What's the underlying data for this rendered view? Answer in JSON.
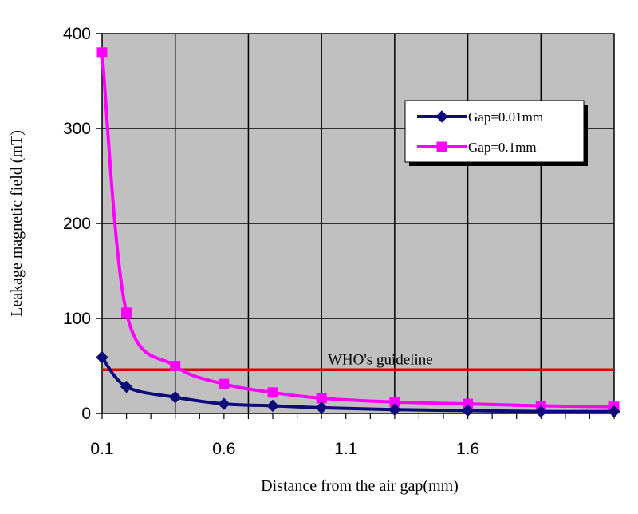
{
  "chart_data": {
    "type": "line",
    "xlabel": "Distance from the air gap(mm)",
    "ylabel": "Leakage magnetic field (mT)",
    "xlim": [
      0.1,
      2.2
    ],
    "ylim": [
      0,
      400
    ],
    "xticks": [
      0.1,
      0.6,
      1.1,
      1.6
    ],
    "xtick_labels": [
      "0.1",
      "0.6",
      "1.1",
      "1.6"
    ],
    "yticks": [
      0,
      100,
      200,
      300,
      400
    ],
    "ytick_labels": [
      "0",
      "100",
      "200",
      "300",
      "400"
    ],
    "grid": true,
    "plot_background": "#c0c0c0",
    "legend_position": "top-right",
    "series": [
      {
        "name": "Gap=0.01mm",
        "color": "#0b0b7a",
        "marker": "diamond",
        "x": [
          0.1,
          0.2,
          0.4,
          0.6,
          0.8,
          1.0,
          1.3,
          1.6,
          1.9,
          2.2
        ],
        "y": [
          59,
          28,
          17,
          10,
          8,
          6,
          4,
          3,
          2,
          2
        ]
      },
      {
        "name": "Gap=0.1mm",
        "color": "#ff00ff",
        "marker": "square",
        "x": [
          0.1,
          0.2,
          0.4,
          0.6,
          0.8,
          1.0,
          1.3,
          1.6,
          1.9,
          2.2
        ],
        "y": [
          380,
          106,
          50,
          31,
          22,
          16,
          12,
          10,
          8,
          7
        ]
      }
    ],
    "reference_lines": [
      {
        "label": "WHO's guideline",
        "y": 46,
        "color": "#dd0000"
      }
    ]
  }
}
